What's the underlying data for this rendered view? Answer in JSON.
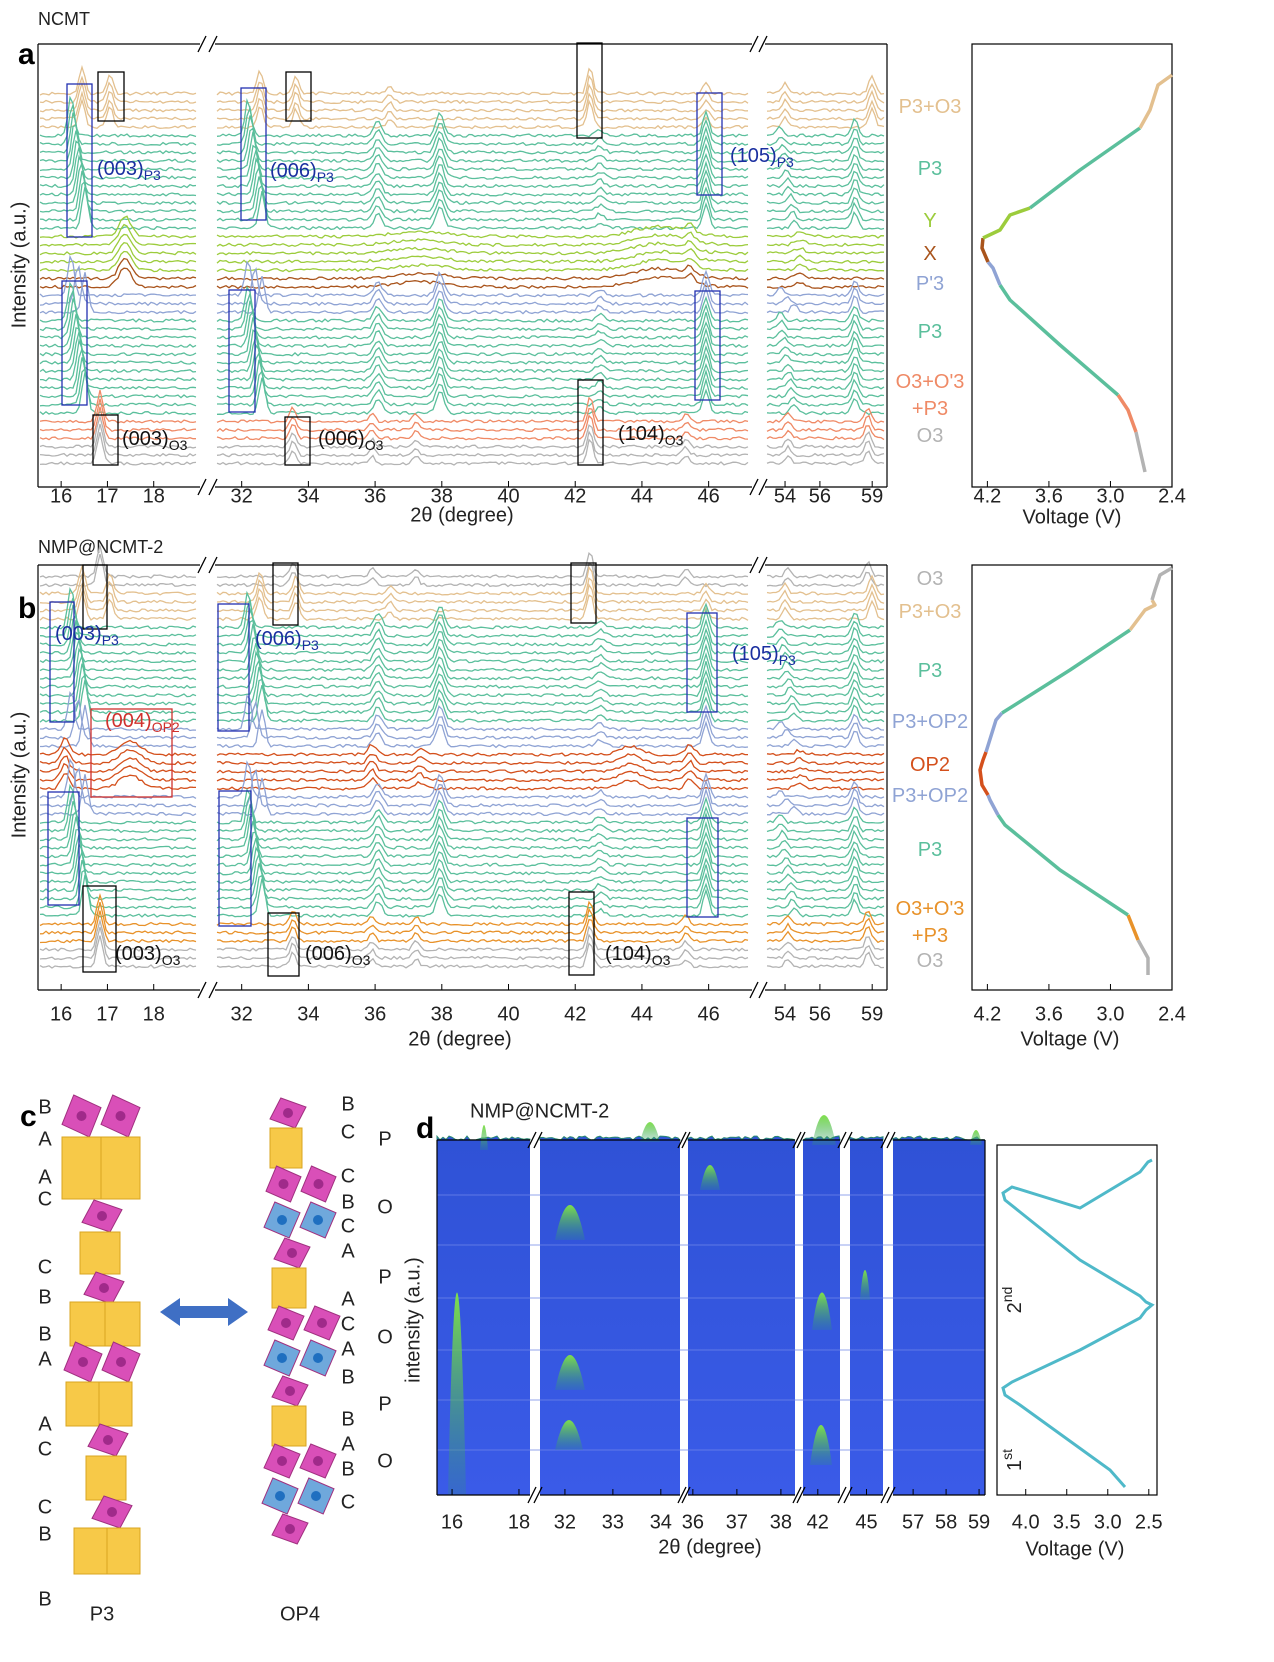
{
  "panel_a": {
    "label": "a",
    "title": "NCMT",
    "y_label": "Intensity (a.u.)",
    "x_label": "2θ (degree)",
    "segments": [
      {
        "xlim": [
          15.5,
          19
        ],
        "xticks": [
          16,
          17,
          18
        ]
      },
      {
        "xlim": [
          31.2,
          47.3
        ],
        "xticks": [
          32,
          34,
          36,
          38,
          40,
          42,
          44,
          46
        ]
      },
      {
        "xlim": [
          52.85,
          59.85
        ],
        "xticks": [
          54,
          56,
          59
        ]
      }
    ],
    "phases": [
      {
        "text": [
          "P3+O3"
        ],
        "color": "#e3c08f"
      },
      {
        "text": [
          "P3"
        ],
        "color": "#5bbf9c"
      },
      {
        "text": [
          "Y"
        ],
        "color": "#9ccc3c"
      },
      {
        "text": [
          "X"
        ],
        "color": "#a9541c"
      },
      {
        "text": [
          "P'3"
        ],
        "color": "#8fa3d4"
      },
      {
        "text": [
          "P3"
        ],
        "color": "#5bbf9c"
      },
      {
        "text": [
          "O3+O'3",
          "+P3"
        ],
        "color": "#ef8a66"
      },
      {
        "text": [
          "O3"
        ],
        "color": "#b3b3b3"
      }
    ],
    "annotations": [
      {
        "text": "(003)",
        "sub": "P3",
        "color": "#1a2fa0"
      },
      {
        "text": "(006)",
        "sub": "P3",
        "color": "#1a2fa0"
      },
      {
        "text": "(105)",
        "sub": "P3",
        "color": "#1a2fa0"
      },
      {
        "text": "(003)",
        "sub": "O3",
        "color": "#111111"
      },
      {
        "text": "(006)",
        "sub": "O3",
        "color": "#111111"
      },
      {
        "text": "(104)",
        "sub": "O3",
        "color": "#111111"
      }
    ],
    "voltage": {
      "xlim": [
        4.35,
        2.4
      ],
      "xticks": [
        4.2,
        3.6,
        {
          "value": 3,
          "label": "3.0"
        },
        2.4
      ],
      "x_label": "Voltage (V)"
    }
  },
  "panel_b": {
    "label": "b",
    "title": "NMP@NCMT-2",
    "y_label": "Intensity (a.u.)",
    "x_label": "2θ (degree)",
    "segments": [
      {
        "xlim": [
          15.5,
          19
        ],
        "xticks": [
          16,
          17,
          18
        ]
      },
      {
        "xlim": [
          31.2,
          47.3
        ],
        "xticks": [
          32,
          34,
          36,
          38,
          40,
          42,
          44,
          46
        ]
      },
      {
        "xlim": [
          52.85,
          59.85
        ],
        "xticks": [
          54,
          56,
          59
        ]
      }
    ],
    "phases": [
      {
        "text": [
          "O3"
        ],
        "color": "#b3b3b3"
      },
      {
        "text": [
          "P3+O3"
        ],
        "color": "#e3c08f"
      },
      {
        "text": [
          "P3"
        ],
        "color": "#5bbf9c"
      },
      {
        "text": [
          "P3+OP2"
        ],
        "color": "#8fa3d4"
      },
      {
        "text": [
          "OP2"
        ],
        "color": "#d4501c"
      },
      {
        "text": [
          "P3+OP2"
        ],
        "color": "#8fa3d4"
      },
      {
        "text": [
          "P3"
        ],
        "color": "#5bbf9c"
      },
      {
        "text": [
          "O3+O'3",
          "+P3"
        ],
        "color": "#e8922a"
      },
      {
        "text": [
          "O3"
        ],
        "color": "#b3b3b3"
      }
    ],
    "annotations": [
      {
        "text": "(003)",
        "sub": "P3",
        "color": "#1a2fa0"
      },
      {
        "text": "(006)",
        "sub": "P3",
        "color": "#1a2fa0"
      },
      {
        "text": "(105)",
        "sub": "P3",
        "color": "#1a2fa0"
      },
      {
        "text": "(004)",
        "sub": "OP2",
        "color": "#d0312d"
      },
      {
        "text": "(003)",
        "sub": "O3",
        "color": "#111111"
      },
      {
        "text": "(006)",
        "sub": "O3",
        "color": "#111111"
      },
      {
        "text": "(104)",
        "sub": "O3",
        "color": "#111111"
      }
    ],
    "voltage": {
      "xlim": [
        4.35,
        2.4
      ],
      "xticks": [
        4.2,
        3.6,
        {
          "value": 3,
          "label": "3.0"
        },
        2.4
      ],
      "x_label": "Voltage (V)"
    }
  },
  "panel_c": {
    "label": "c",
    "left_stack": [
      "B",
      "A",
      "A",
      "C",
      "C",
      "B",
      "B",
      "A",
      "A",
      "C",
      "C",
      "B",
      "B"
    ],
    "right_stack": [
      "B",
      "C",
      "C",
      "B",
      "C",
      "A",
      "A",
      "C",
      "A",
      "B",
      "B",
      "A",
      "B",
      "C"
    ],
    "left_name": "P3",
    "right_name": "OP4"
  },
  "panel_d": {
    "label": "d",
    "title": "NMP@NCMT-2",
    "y_label": "intensity (a.u.)",
    "x_label": "2θ (degree)",
    "stack_labels": [
      "P",
      "O",
      "P",
      "O",
      "P",
      "O"
    ],
    "segments": [
      {
        "xlim": [
          15.55,
          18.33
        ],
        "xticks": [
          16,
          18
        ]
      },
      {
        "xlim": [
          31.48,
          34.4
        ],
        "xticks": [
          32,
          33,
          34
        ]
      },
      {
        "xlim": [
          35.89,
          38.32
        ],
        "xticks": [
          36,
          37,
          38
        ]
      },
      {
        "xlim": [
          41.6,
          42.6
        ],
        "xticks": [
          42
        ]
      },
      {
        "xlim": [
          44.5,
          45.5
        ],
        "xticks": [
          45
        ]
      },
      {
        "xlim": [
          56.39,
          59.18
        ],
        "xticks": [
          57,
          58,
          59
        ]
      }
    ],
    "voltage": {
      "xlim": [
        4.35,
        2.4
      ],
      "xticks": [
        {
          "value": 4,
          "label": "4.0"
        },
        3.5,
        {
          "value": 3,
          "label": "3.0"
        },
        2.5
      ],
      "x_label": "Voltage (V)",
      "cycles": [
        {
          "text": "2",
          "sup": "nd"
        },
        {
          "text": "1",
          "sup": "st"
        }
      ]
    }
  }
}
